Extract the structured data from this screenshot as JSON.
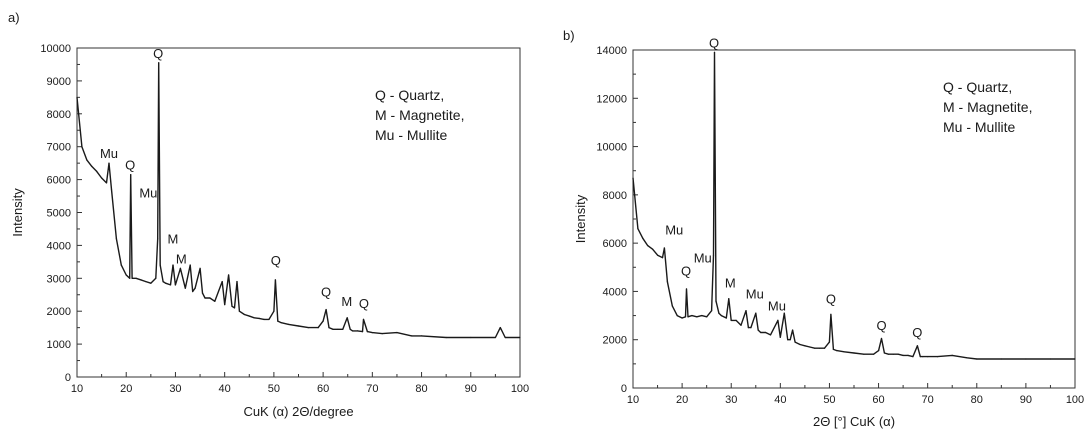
{
  "chart_data": [
    {
      "type": "line",
      "panel_label": "a)",
      "xlabel": "CuK (α) 2Θ/degree",
      "ylabel": "Intensity",
      "xlim": [
        10,
        100
      ],
      "ylim": [
        0,
        10000
      ],
      "xticks": [
        10,
        20,
        30,
        40,
        50,
        60,
        70,
        80,
        90,
        100
      ],
      "yticks": [
        0,
        1000,
        2000,
        3000,
        4000,
        5000,
        6000,
        7000,
        8000,
        9000,
        10000
      ],
      "legend": [
        "Q - Quartz,",
        "M - Magnetite,",
        "Mu - Mullite"
      ],
      "legend_position": "top-right",
      "grid": false,
      "series": [
        {
          "x": [
            10,
            11,
            12,
            13,
            14,
            15,
            16,
            16.5,
            17,
            18,
            19,
            20,
            20.7,
            20.9,
            21.2,
            22,
            23,
            24,
            25,
            26,
            26.4,
            26.6,
            26.9,
            27.5,
            28,
            29,
            29.5,
            30,
            31,
            32,
            33,
            33.5,
            34,
            35,
            35.5,
            36,
            37,
            38,
            39.5,
            40,
            40.8,
            41.5,
            42,
            42.5,
            43,
            44,
            45,
            46,
            47,
            48,
            49,
            50,
            50.3,
            50.8,
            51.5,
            53,
            55,
            57,
            59,
            60,
            60.6,
            61.2,
            62,
            63,
            64,
            64.9,
            65.5,
            66,
            67,
            68,
            68.2,
            69,
            70,
            72,
            75,
            78,
            80,
            85,
            90,
            95,
            96,
            97,
            100
          ],
          "y": [
            8500,
            7000,
            6600,
            6400,
            6250,
            6050,
            5900,
            6500,
            5700,
            4200,
            3400,
            3100,
            3000,
            6150,
            3000,
            3000,
            2950,
            2900,
            2850,
            3000,
            4200,
            9550,
            3400,
            2900,
            2850,
            2800,
            3400,
            2800,
            3300,
            2700,
            3400,
            2600,
            2700,
            3300,
            2550,
            2400,
            2400,
            2300,
            2900,
            2200,
            3100,
            2150,
            2100,
            2900,
            2000,
            1900,
            1850,
            1800,
            1780,
            1750,
            1750,
            2000,
            2950,
            1700,
            1650,
            1600,
            1550,
            1500,
            1500,
            1700,
            2050,
            1500,
            1450,
            1450,
            1450,
            1800,
            1450,
            1400,
            1400,
            1380,
            1750,
            1380,
            1350,
            1320,
            1350,
            1250,
            1250,
            1200,
            1200,
            1200,
            1500,
            1200,
            1200
          ]
        }
      ],
      "annotations": [
        {
          "text": "Q",
          "x": 26.5,
          "y": 9550
        },
        {
          "text": "Mu",
          "x": 16.5,
          "y": 6500
        },
        {
          "text": "Q",
          "x": 20.8,
          "y": 6150
        },
        {
          "text": "Mu",
          "x": 24.5,
          "y": 5300
        },
        {
          "text": "M",
          "x": 29.5,
          "y": 3900
        },
        {
          "text": "M",
          "x": 31.2,
          "y": 3300
        },
        {
          "text": "Q",
          "x": 50.4,
          "y": 3250
        },
        {
          "text": "Q",
          "x": 60.6,
          "y": 2300
        },
        {
          "text": "M",
          "x": 64.8,
          "y": 2000
        },
        {
          "text": "Q",
          "x": 68.3,
          "y": 1950
        }
      ]
    },
    {
      "type": "line",
      "panel_label": "b)",
      "xlabel": "2Θ [°] CuK (α)",
      "ylabel": "Intensity",
      "xlim": [
        10,
        100
      ],
      "ylim": [
        0,
        14000
      ],
      "xticks": [
        10,
        20,
        30,
        40,
        50,
        60,
        70,
        80,
        90,
        100
      ],
      "yticks": [
        0,
        2000,
        4000,
        6000,
        8000,
        10000,
        12000,
        14000
      ],
      "legend": [
        "Q - Quartz,",
        "M - Magnetite,",
        "Mu - Mullite"
      ],
      "legend_position": "top-right",
      "grid": false,
      "series": [
        {
          "x": [
            10,
            11,
            12,
            13,
            14,
            15,
            16,
            16.4,
            17,
            18,
            19,
            20,
            20.7,
            20.9,
            21.2,
            22,
            23,
            24,
            25,
            26,
            26.4,
            26.6,
            26.9,
            27.5,
            28,
            29,
            29.5,
            30,
            31,
            32,
            33,
            33.5,
            34,
            35,
            35.5,
            36,
            37,
            38,
            39.5,
            40,
            40.8,
            41.5,
            42,
            42.5,
            43,
            44,
            45,
            46,
            47,
            48,
            49,
            50,
            50.3,
            50.8,
            51.5,
            53,
            55,
            57,
            59,
            60,
            60.6,
            61.2,
            62,
            63,
            64,
            65,
            66,
            67,
            67.9,
            68.5,
            69,
            70,
            72,
            75,
            78,
            80,
            85,
            90,
            95,
            100
          ],
          "y": [
            8700,
            6600,
            6200,
            5900,
            5750,
            5500,
            5400,
            5800,
            4400,
            3400,
            3000,
            2900,
            2950,
            4100,
            2950,
            3000,
            2950,
            3000,
            2950,
            3200,
            5500,
            13900,
            3600,
            3100,
            3000,
            2900,
            3700,
            2800,
            2800,
            2600,
            3200,
            2500,
            2500,
            3100,
            2400,
            2300,
            2300,
            2200,
            2800,
            2100,
            3100,
            2000,
            2000,
            2400,
            1900,
            1800,
            1750,
            1700,
            1650,
            1650,
            1650,
            1900,
            3050,
            1600,
            1550,
            1500,
            1450,
            1400,
            1400,
            1550,
            2050,
            1450,
            1400,
            1400,
            1400,
            1350,
            1350,
            1300,
            1750,
            1300,
            1300,
            1300,
            1300,
            1350,
            1250,
            1200,
            1200,
            1200,
            1200,
            1200
          ]
        }
      ],
      "annotations": [
        {
          "text": "Q",
          "x": 26.5,
          "y": 13900
        },
        {
          "text": "Mu",
          "x": 18.4,
          "y": 6150
        },
        {
          "text": "Q",
          "x": 20.8,
          "y": 4450
        },
        {
          "text": "Mu",
          "x": 24.2,
          "y": 5000
        },
        {
          "text": "M",
          "x": 29.8,
          "y": 3950
        },
        {
          "text": "Mu",
          "x": 34.8,
          "y": 3500
        },
        {
          "text": "Mu",
          "x": 39.3,
          "y": 3000
        },
        {
          "text": "Q",
          "x": 50.3,
          "y": 3300
        },
        {
          "text": "Q",
          "x": 60.6,
          "y": 2200
        },
        {
          "text": "Q",
          "x": 67.9,
          "y": 1900
        }
      ]
    }
  ]
}
